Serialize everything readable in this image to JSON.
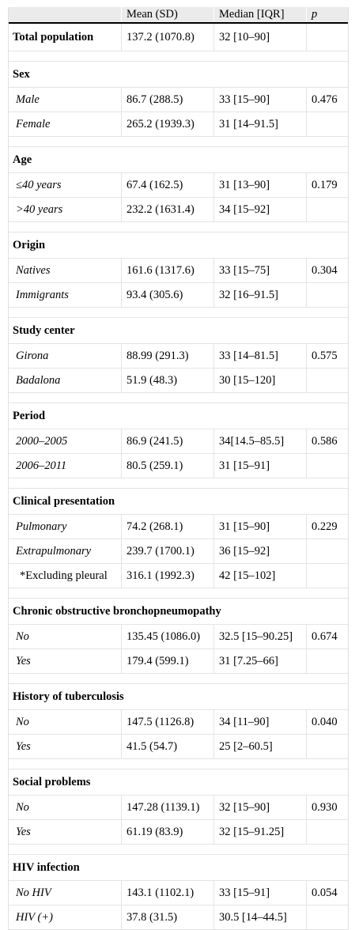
{
  "header": {
    "c1": "",
    "mean": "Mean (SD)",
    "median": "Median [IQR]",
    "p": "p"
  },
  "total": {
    "label": "Total population",
    "mean": "137.2 (1070.8)",
    "median": "32 [10–90]",
    "p": ""
  },
  "groups": [
    {
      "title": "Sex",
      "rows": [
        {
          "label": "Male",
          "mean": "86.7 (288.5)",
          "median": "33 [15–90]",
          "p": "0.476"
        },
        {
          "label": "Female",
          "mean": "265.2 (1939.3)",
          "median": "31 [14–91.5]",
          "p": ""
        }
      ]
    },
    {
      "title": "Age",
      "rows": [
        {
          "label": "≤40 years",
          "mean": "67.4 (162.5)",
          "median": "31 [13–90]",
          "p": "0.179"
        },
        {
          "label": ">40 years",
          "mean": "232.2 (1631.4)",
          "median": "34 [15–92]",
          "p": ""
        }
      ]
    },
    {
      "title": "Origin",
      "rows": [
        {
          "label": "Natives",
          "mean": "161.6 (1317.6)",
          "median": "33 [15–75]",
          "p": "0.304"
        },
        {
          "label": "Immigrants",
          "mean": "93.4 (305.6)",
          "median": "32 [16–91.5]",
          "p": ""
        }
      ]
    },
    {
      "title": "Study center",
      "rows": [
        {
          "label": "Girona",
          "mean": "88.99 (291.3)",
          "median": "33 [14–81.5]",
          "p": "0.575"
        },
        {
          "label": "Badalona",
          "mean": "51.9 (48.3)",
          "median": "30 [15–120]",
          "p": ""
        }
      ]
    },
    {
      "title": "Period",
      "rows": [
        {
          "label": "2000–2005",
          "mean": "86.9 (241.5)",
          "median": "34[14.5–85.5]",
          "p": "0.586"
        },
        {
          "label": "2006–2011",
          "mean": "80.5 (259.1)",
          "median": "31 [15–91]",
          "p": ""
        }
      ]
    },
    {
      "title": "Clinical presentation",
      "rows": [
        {
          "label": "Pulmonary",
          "mean": "74.2 (268.1)",
          "median": "31 [15–90]",
          "p": "0.229"
        },
        {
          "label": "Extrapulmonary",
          "mean": "239.7 (1700.1)",
          "median": "36 [15–92]",
          "p": ""
        },
        {
          "label": "*Excluding pleural",
          "mean": "316.1 (1992.3)",
          "median": "42 [15–102]",
          "p": "",
          "upright": true
        }
      ]
    },
    {
      "title": "Chronic obstructive bronchopneumopathy",
      "rows": [
        {
          "label": "No",
          "mean": "135.45 (1086.0)",
          "median": "32.5 [15–90.25]",
          "p": "0.674"
        },
        {
          "label": "Yes",
          "mean": "179.4 (599.1)",
          "median": "31 [7.25–66]",
          "p": ""
        }
      ]
    },
    {
      "title": "History of tuberculosis",
      "rows": [
        {
          "label": "No",
          "mean": "147.5 (1126.8)",
          "median": "34 [11–90]",
          "p": "0.040"
        },
        {
          "label": "Yes",
          "mean": "41.5 (54.7)",
          "median": "25 [2–60.5]",
          "p": ""
        }
      ]
    },
    {
      "title": "Social problems",
      "rows": [
        {
          "label": "No",
          "mean": "147.28 (1139.1)",
          "median": "32 [15–90]",
          "p": "0.930"
        },
        {
          "label": "Yes",
          "mean": "61.19 (83.9)",
          "median": "32 [15–91.25]",
          "p": ""
        }
      ]
    },
    {
      "title": "HIV infection",
      "rows": [
        {
          "label": "No HIV",
          "mean": "143.1 (1102.1)",
          "median": "33 [15–91]",
          "p": "0.054"
        },
        {
          "label": "HIV (+)",
          "mean": "37.8 (31.5)",
          "median": "30.5 [14–44.5]",
          "p": ""
        }
      ]
    }
  ]
}
